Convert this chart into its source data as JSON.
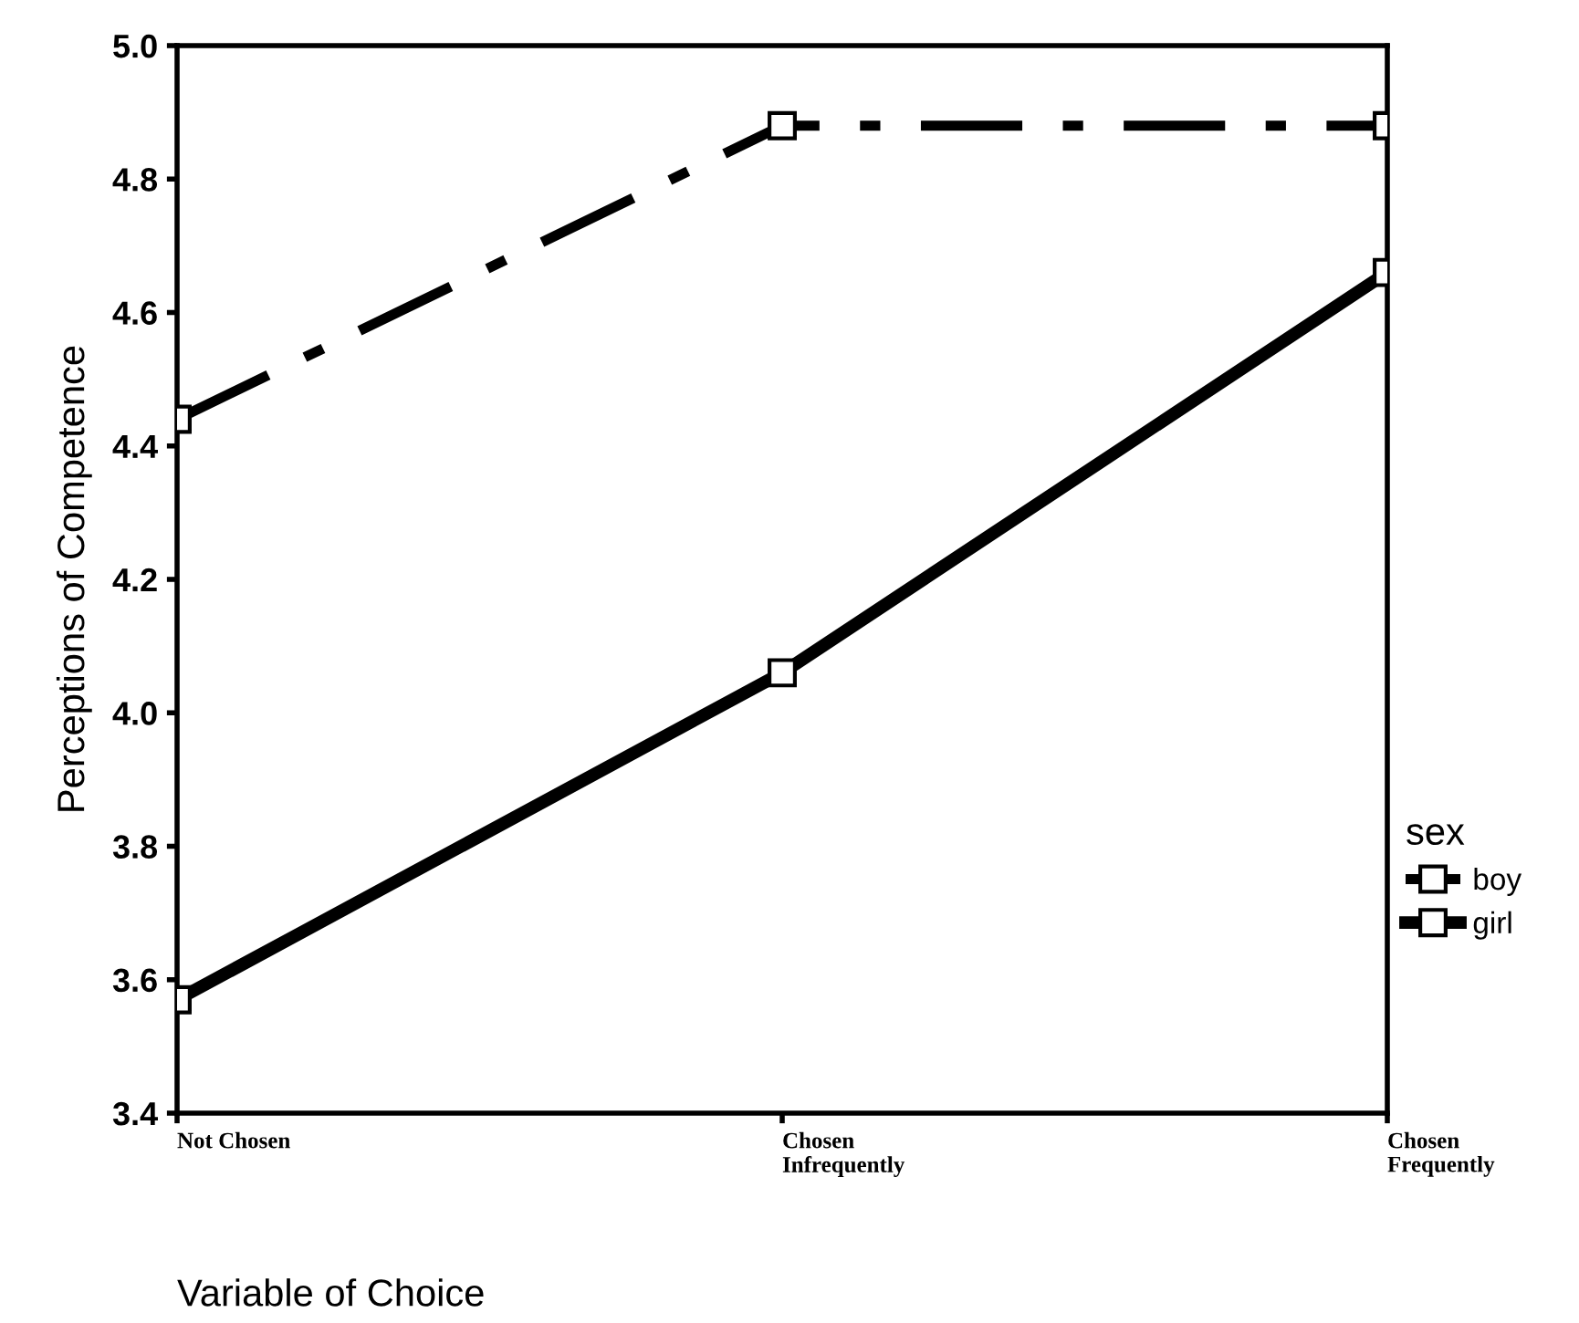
{
  "chart_data": {
    "type": "line",
    "xlabel": "Variable of Choice",
    "ylabel": "Perceptions of Competence",
    "legend_title": "sex",
    "categories": [
      "Not Chosen",
      "Chosen\nInfrequently",
      "Chosen\nFrequently"
    ],
    "series": [
      {
        "name": "boy",
        "color": "#000000",
        "line_style": "dashdot",
        "values": [
          4.44,
          4.88,
          4.88
        ]
      },
      {
        "name": "girl",
        "color": "#000000",
        "line_style": "solid",
        "values": [
          3.57,
          4.06,
          4.66
        ]
      }
    ],
    "ylim": [
      3.4,
      5.0
    ],
    "yticks": [
      3.4,
      3.6,
      3.8,
      {
        "value": 4,
        "label": "4.0"
      },
      4.2,
      4.4,
      4.6,
      4.8,
      {
        "value": 5,
        "label": "5.0"
      }
    ],
    "marker": "square",
    "grid": false,
    "legend": "right"
  }
}
